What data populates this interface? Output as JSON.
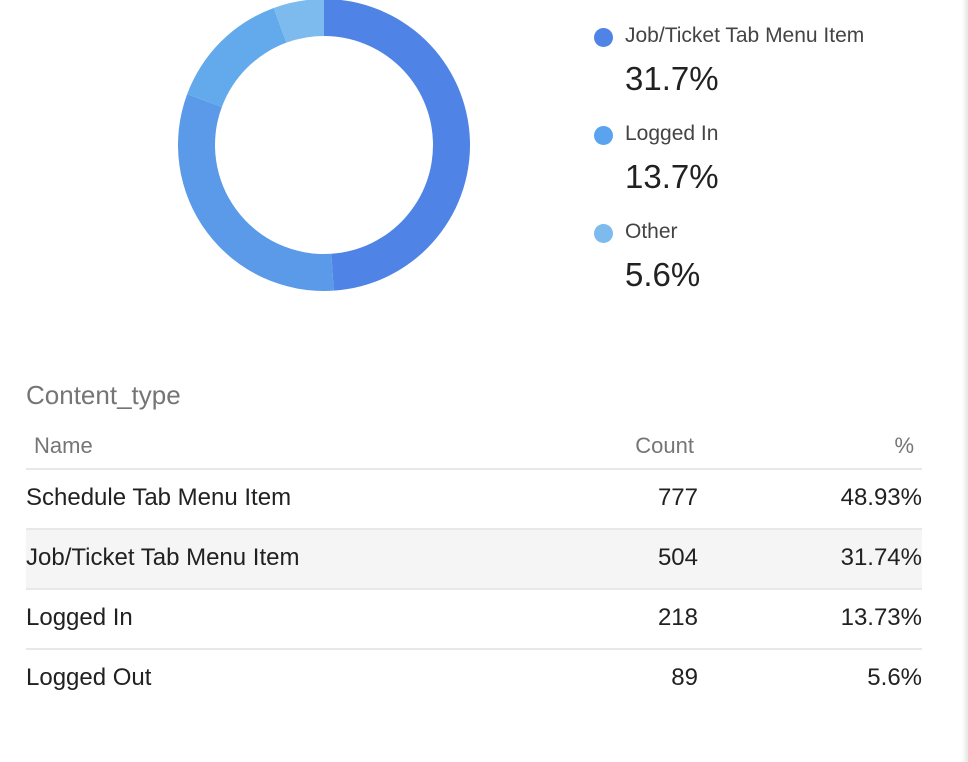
{
  "chart_data": {
    "type": "pie",
    "donut": true,
    "categories": [
      "Schedule Tab Menu Item",
      "Job/Ticket Tab Menu Item",
      "Logged In",
      "Logged Out"
    ],
    "values": [
      48.93,
      31.74,
      13.73,
      5.6
    ],
    "colors": [
      "#4f84e6",
      "#5a9ae8",
      "#62aaec",
      "#7dbbee"
    ]
  },
  "legend": [
    {
      "label": "Job/Ticket Tab Menu Item",
      "value": "31.7%",
      "color": "#4f84e6"
    },
    {
      "label": "Logged In",
      "value": "13.7%",
      "color": "#5aa3ef"
    },
    {
      "label": "Other",
      "value": "5.6%",
      "color": "#7dbbee"
    }
  ],
  "table": {
    "title": "Content_type",
    "headers": {
      "name": "Name",
      "count": "Count",
      "pct": "%"
    },
    "rows": [
      {
        "name": "Schedule Tab Menu Item",
        "count": "777",
        "pct": "48.93%"
      },
      {
        "name": "Job/Ticket Tab Menu Item",
        "count": "504",
        "pct": "31.74%"
      },
      {
        "name": "Logged In",
        "count": "218",
        "pct": "13.73%"
      },
      {
        "name": "Logged Out",
        "count": "89",
        "pct": "5.6%"
      }
    ]
  }
}
